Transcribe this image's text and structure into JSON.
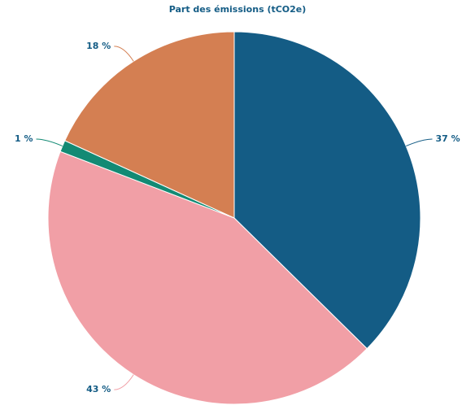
{
  "chart_data": {
    "type": "pie",
    "title": "Part des émissions (tCO2e)",
    "values": [
      37,
      43,
      1,
      18
    ],
    "value_labels": [
      "37 %",
      "43 %",
      "1 %",
      "18 %"
    ],
    "colors": [
      "#145c85",
      "#f19fa6",
      "#138a74",
      "#d47f52"
    ]
  }
}
